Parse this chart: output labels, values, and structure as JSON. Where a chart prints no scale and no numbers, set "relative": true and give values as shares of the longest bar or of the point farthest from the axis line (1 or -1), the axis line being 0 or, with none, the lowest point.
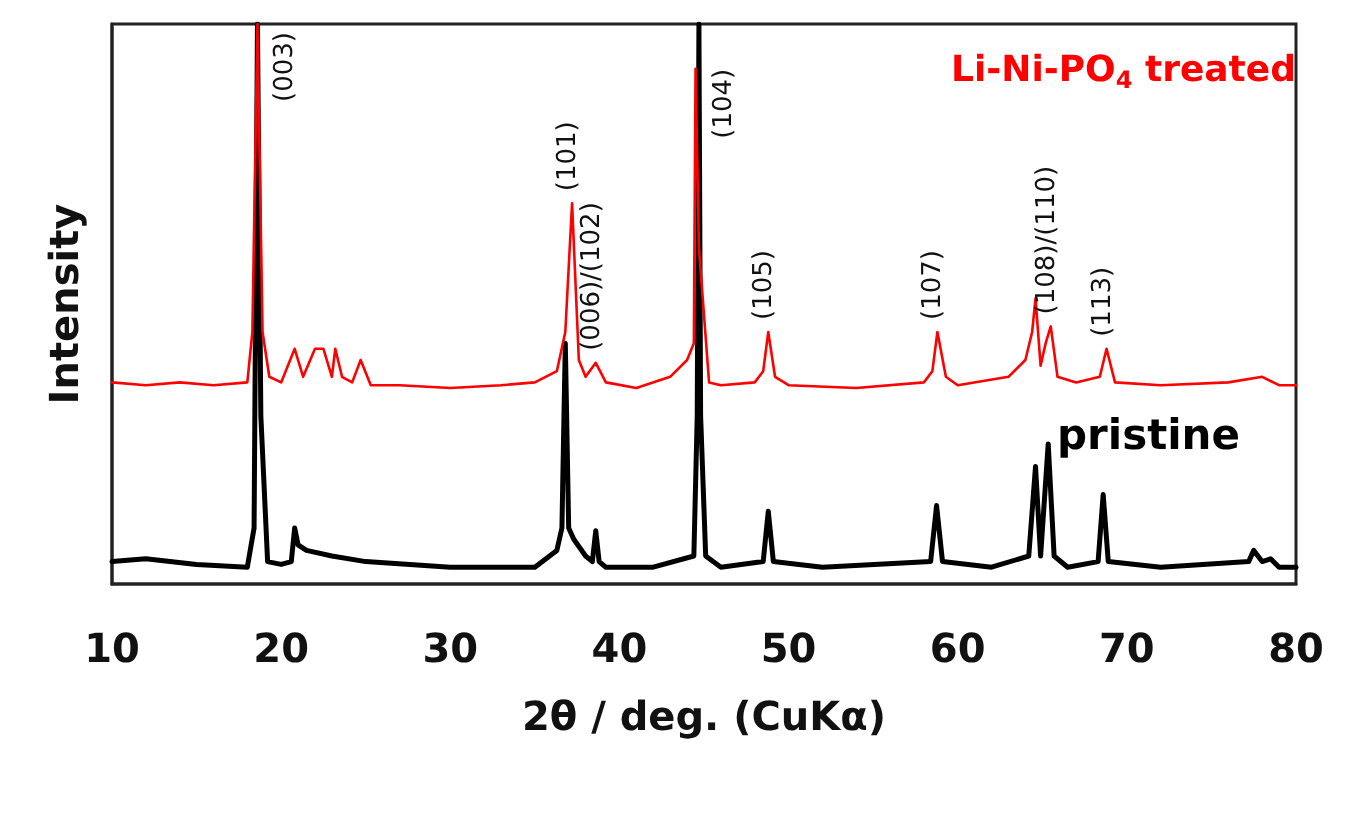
{
  "chart_data": {
    "type": "line",
    "relative": true,
    "xlabel": "2θ / deg. (CuKα)",
    "ylabel": "Intensity",
    "xlim": [
      10,
      80
    ],
    "xticks": [
      10,
      20,
      30,
      40,
      50,
      60,
      70,
      80
    ],
    "grid": false,
    "series": [
      {
        "name": "Li-Ni-PO$_{4}$ treated",
        "color": "#ff0000",
        "x": [
          10,
          12,
          14,
          16,
          18,
          18.3,
          18.6,
          18.9,
          19.3,
          20,
          20.8,
          21.3,
          22,
          22.5,
          23,
          23.2,
          23.6,
          24.2,
          24.7,
          25.3,
          27,
          30,
          33,
          35,
          36.3,
          36.8,
          37.2,
          37.6,
          38,
          38.6,
          39.2,
          41,
          43,
          44,
          44.4,
          44.5,
          44.7,
          45.3,
          46,
          48,
          48.5,
          48.8,
          49.2,
          50,
          54,
          58,
          58.5,
          58.8,
          59.3,
          60,
          63,
          64,
          64.4,
          64.6,
          64.9,
          65.2,
          65.5,
          65.9,
          67,
          68.4,
          68.8,
          69.3,
          72,
          76,
          78,
          79,
          80
        ],
        "values": [
          0.36,
          0.355,
          0.36,
          0.355,
          0.36,
          0.45,
          1.0,
          0.45,
          0.37,
          0.36,
          0.42,
          0.37,
          0.42,
          0.42,
          0.37,
          0.42,
          0.37,
          0.36,
          0.4,
          0.355,
          0.355,
          0.35,
          0.355,
          0.36,
          0.38,
          0.45,
          0.68,
          0.4,
          0.37,
          0.395,
          0.36,
          0.35,
          0.37,
          0.4,
          0.43,
          0.92,
          0.6,
          0.36,
          0.355,
          0.36,
          0.38,
          0.45,
          0.37,
          0.355,
          0.35,
          0.36,
          0.38,
          0.45,
          0.37,
          0.355,
          0.37,
          0.4,
          0.45,
          0.51,
          0.39,
          0.43,
          0.46,
          0.37,
          0.36,
          0.37,
          0.42,
          0.36,
          0.355,
          0.36,
          0.37,
          0.355,
          0.355
        ]
      },
      {
        "name": "pristine",
        "color": "#000000",
        "x": [
          10,
          12,
          15,
          18,
          18.4,
          18.6,
          18.8,
          19.2,
          20,
          20.6,
          20.8,
          21,
          21.5,
          23,
          25,
          30,
          35,
          36.3,
          36.6,
          36.8,
          37,
          37.3,
          38,
          38.4,
          38.6,
          38.8,
          39.2,
          42,
          44.4,
          44.6,
          44.7,
          44.8,
          45.1,
          46,
          48.5,
          48.8,
          49.1,
          52,
          58.4,
          58.75,
          59.1,
          62,
          64.2,
          64.6,
          64.9,
          65.35,
          65.7,
          66.5,
          68.3,
          68.6,
          68.9,
          72,
          77.2,
          77.5,
          78,
          78.5,
          79,
          80
        ],
        "values": [
          0.04,
          0.045,
          0.035,
          0.03,
          0.1,
          1.0,
          0.3,
          0.04,
          0.035,
          0.04,
          0.1,
          0.07,
          0.06,
          0.05,
          0.04,
          0.03,
          0.03,
          0.06,
          0.1,
          0.43,
          0.1,
          0.08,
          0.05,
          0.04,
          0.095,
          0.04,
          0.03,
          0.03,
          0.05,
          0.3,
          1.0,
          0.3,
          0.05,
          0.03,
          0.04,
          0.13,
          0.04,
          0.03,
          0.04,
          0.14,
          0.04,
          0.03,
          0.05,
          0.21,
          0.05,
          0.25,
          0.05,
          0.03,
          0.04,
          0.16,
          0.04,
          0.03,
          0.04,
          0.06,
          0.04,
          0.045,
          0.03,
          0.03
        ]
      }
    ],
    "annotations": [
      {
        "text": "(003)",
        "x": 18.6,
        "y": 1.0
      },
      {
        "text": "(101)",
        "x": 37.2,
        "y": 0.68
      },
      {
        "text": "(006)/(102)",
        "x": 38.6,
        "y": 0.395
      },
      {
        "text": "(104)",
        "x": 44.5,
        "y": 0.92
      },
      {
        "text": "(105)",
        "x": 48.8,
        "y": 0.45
      },
      {
        "text": "(107)",
        "x": 58.8,
        "y": 0.45
      },
      {
        "text": "(108)/(110)",
        "x": 65.5,
        "y": 0.46
      },
      {
        "text": "(113)",
        "x": 68.8,
        "y": 0.42
      }
    ]
  }
}
